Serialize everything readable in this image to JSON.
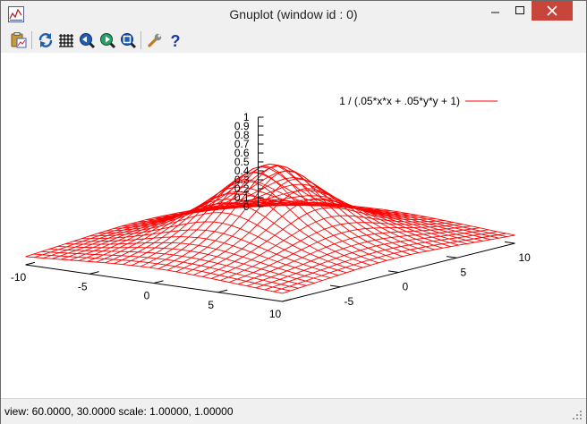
{
  "window": {
    "title": "Gnuplot (window id : 0)"
  },
  "toolbar": {
    "buttons": [
      {
        "name": "copy-to-clipboard-button",
        "icon": "clipboard-icon"
      },
      {
        "name": "replot-button",
        "icon": "refresh-icon"
      },
      {
        "name": "toggle-grid-button",
        "icon": "grid-icon"
      },
      {
        "name": "previous-zoom-button",
        "icon": "zoom-previous-icon"
      },
      {
        "name": "next-zoom-button",
        "icon": "zoom-next-icon"
      },
      {
        "name": "autoscale-button",
        "icon": "zoom-autoscale-icon"
      },
      {
        "name": "options-button",
        "icon": "wrench-icon"
      },
      {
        "name": "help-button",
        "icon": "help-icon"
      }
    ]
  },
  "plot": {
    "legend_label": "1 / (.05*x*x + .05*y*y + 1)",
    "line_color": "#ff0000",
    "view": {
      "rot_x": 60,
      "rot_z": 30,
      "scale": 1,
      "scale_z": 1
    }
  },
  "chart_data": {
    "type": "surface",
    "function": "1 / (.05*x*x + .05*y*y + 1)",
    "series": [
      {
        "name": "1 / (.05*x*x + .05*y*y + 1)",
        "color": "#ff0000"
      }
    ],
    "xlim": [
      -10,
      10
    ],
    "ylim": [
      -10,
      10
    ],
    "zlim": [
      0,
      1
    ],
    "x_ticks": [
      "-10",
      "-5",
      "0",
      "5",
      "10"
    ],
    "y_ticks": [
      "-5",
      "0",
      "5",
      "10"
    ],
    "z_ticks": [
      "0",
      "0.1",
      "0.2",
      "0.3",
      "0.4",
      "0.5",
      "0.6",
      "0.7",
      "0.8",
      "0.9",
      "1"
    ],
    "samples": 30,
    "legend_position": "top-right"
  },
  "status": {
    "text": "view: 60.0000,  30.0000   scale:  1.00000,  1.00000"
  }
}
